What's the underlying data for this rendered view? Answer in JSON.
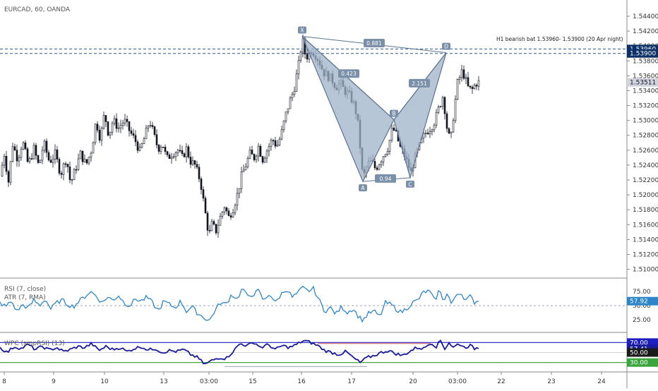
{
  "header": {
    "title": "EURCAD, 60, OANDA"
  },
  "colors": {
    "candle": "#131722",
    "pattern_fill": "#9fb3c8",
    "pattern_stroke": "#5b7391",
    "level_line": "#2b5797",
    "rsi_line": "#2e86c8",
    "wpc_line": "#1a1a9c",
    "wpc_upper": "#1f1fbf",
    "wpc_lower": "#2e9e2e",
    "wpc_red": "#e05a5a",
    "price_badge": "#0b2f66",
    "current_badge": "#d1d4dc"
  },
  "chart_data": [
    {
      "type": "candlestick",
      "title": "EURCAD, 60, OANDA",
      "y_ticks": [
        "1.54400",
        "1.54200",
        "1.54000",
        "1.53800",
        "1.53600",
        "1.53400",
        "1.53200",
        "1.53000",
        "1.52800",
        "1.52600",
        "1.52400",
        "1.52200",
        "1.52000",
        "1.51800",
        "1.51600",
        "1.51400",
        "1.51200",
        "1.51000"
      ],
      "ylim": [
        1.5092,
        1.5458
      ],
      "x_ticks": [
        "8",
        "9",
        "10",
        "13",
        "03:00",
        "15",
        "16",
        "17",
        "20",
        "03:00",
        "22",
        "23",
        "24"
      ],
      "close_path": [
        [
          0,
          1.5225
        ],
        [
          6,
          1.5255
        ],
        [
          12,
          1.5218
        ],
        [
          18,
          1.5268
        ],
        [
          25,
          1.5248
        ],
        [
          32,
          1.5272
        ],
        [
          40,
          1.524
        ],
        [
          48,
          1.5262
        ],
        [
          55,
          1.5238
        ],
        [
          62,
          1.527
        ],
        [
          70,
          1.5244
        ],
        [
          78,
          1.5255
        ],
        [
          86,
          1.5228
        ],
        [
          94,
          1.525
        ],
        [
          100,
          1.5215
        ],
        [
          108,
          1.5238
        ],
        [
          114,
          1.5255
        ],
        [
          122,
          1.524
        ],
        [
          130,
          1.5262
        ],
        [
          136,
          1.53
        ],
        [
          142,
          1.5275
        ],
        [
          148,
          1.531
        ],
        [
          154,
          1.528
        ],
        [
          160,
          1.53
        ],
        [
          168,
          1.529
        ],
        [
          176,
          1.53
        ],
        [
          184,
          1.5285
        ],
        [
          192,
          1.5272
        ],
        [
          198,
          1.5258
        ],
        [
          205,
          1.5278
        ],
        [
          212,
          1.53
        ],
        [
          218,
          1.528
        ],
        [
          224,
          1.5262
        ],
        [
          230,
          1.527
        ],
        [
          236,
          1.5248
        ],
        [
          244,
          1.5256
        ],
        [
          252,
          1.526
        ],
        [
          258,
          1.525
        ],
        [
          264,
          1.5262
        ],
        [
          270,
          1.5245
        ],
        [
          276,
          1.524
        ],
        [
          284,
          1.5218
        ],
        [
          290,
          1.518
        ],
        [
          296,
          1.5145
        ],
        [
          300,
          1.516
        ],
        [
          306,
          1.5152
        ],
        [
          312,
          1.517
        ],
        [
          318,
          1.5185
        ],
        [
          324,
          1.517
        ],
        [
          330,
          1.5182
        ],
        [
          336,
          1.52
        ],
        [
          342,
          1.5225
        ],
        [
          348,
          1.524
        ],
        [
          354,
          1.5255
        ],
        [
          360,
          1.525
        ],
        [
          366,
          1.5265
        ],
        [
          372,
          1.5248
        ],
        [
          378,
          1.526
        ],
        [
          386,
          1.5275
        ],
        [
          392,
          1.5265
        ],
        [
          398,
          1.528
        ],
        [
          404,
          1.5305
        ],
        [
          410,
          1.5325
        ],
        [
          416,
          1.534
        ],
        [
          420,
          1.536
        ],
        [
          424,
          1.538
        ],
        [
          428,
          1.541
        ],
        [
          432,
          1.539
        ],
        [
          436,
          1.5385
        ],
        [
          440,
          1.5395
        ],
        [
          446,
          1.539
        ],
        [
          452,
          1.538
        ],
        [
          458,
          1.5365
        ],
        [
          464,
          1.536
        ],
        [
          470,
          1.5355
        ],
        [
          476,
          1.5345
        ],
        [
          482,
          1.535
        ],
        [
          488,
          1.534
        ],
        [
          494,
          1.5335
        ],
        [
          500,
          1.5325
        ],
        [
          506,
          1.5305
        ],
        [
          510,
          1.5265
        ],
        [
          514,
          1.522
        ],
        [
          520,
          1.524
        ],
        [
          526,
          1.5245
        ],
        [
          532,
          1.5235
        ],
        [
          538,
          1.5245
        ],
        [
          544,
          1.5255
        ],
        [
          550,
          1.5265
        ],
        [
          556,
          1.529
        ],
        [
          562,
          1.528
        ],
        [
          566,
          1.5265
        ],
        [
          572,
          1.5255
        ],
        [
          578,
          1.524
        ],
        [
          582,
          1.523
        ],
        [
          586,
          1.5245
        ],
        [
          592,
          1.526
        ],
        [
          598,
          1.5275
        ],
        [
          604,
          1.5285
        ],
        [
          610,
          1.529
        ],
        [
          616,
          1.53
        ],
        [
          622,
          1.5318
        ],
        [
          628,
          1.5335
        ],
        [
          632,
          1.5295
        ],
        [
          638,
          1.527
        ],
        [
          642,
          1.5305
        ],
        [
          648,
          1.535
        ],
        [
          654,
          1.5365
        ],
        [
          658,
          1.536
        ],
        [
          662,
          1.5345
        ],
        [
          668,
          1.534
        ],
        [
          674,
          1.535
        ],
        [
          678,
          1.5351
        ]
      ],
      "pattern": {
        "points": [
          {
            "label": "X",
            "bar": 428,
            "price": 1.5413
          },
          {
            "label": "A",
            "bar": 514,
            "price": 1.5218
          },
          {
            "label": "B",
            "bar": 558,
            "price": 1.5301
          },
          {
            "label": "C",
            "bar": 581,
            "price": 1.5223
          },
          {
            "label": "D",
            "bar": 632,
            "price": 1.5391
          }
        ],
        "ratios": [
          {
            "text": "0.881",
            "bar": 530,
            "price": 1.5404
          },
          {
            "text": "0.423",
            "bar": 494,
            "price": 1.5363
          },
          {
            "text": "0.94",
            "bar": 546,
            "price": 1.5222
          },
          {
            "text": "2.151",
            "bar": 594,
            "price": 1.535
          }
        ]
      },
      "levels": [
        1.5396,
        1.539
      ],
      "annotation": "H1 bearish bat 1.53960- 1.53900 (20 Apr night)",
      "price_labels": [
        "1.53960",
        "1.53900"
      ],
      "current_price": "1.53511"
    },
    {
      "type": "line",
      "title": "RSI (7, close)",
      "subtitle": "ATR (7, RMA)",
      "y_ticks": [
        "75.00",
        "50.00",
        "25.00"
      ],
      "ylim": [
        6,
        94
      ],
      "reference_level": 50,
      "current_value": "57.92",
      "series": [
        {
          "values_path": [
            [
              0,
              55
            ],
            [
              8,
              48
            ],
            [
              16,
              58
            ],
            [
              24,
              40
            ],
            [
              32,
              52
            ],
            [
              40,
              45
            ],
            [
              48,
              60
            ],
            [
              56,
              50
            ],
            [
              64,
              62
            ],
            [
              72,
              44
            ],
            [
              80,
              55
            ],
            [
              88,
              60
            ],
            [
              96,
              52
            ],
            [
              104,
              48
            ],
            [
              112,
              58
            ],
            [
              120,
              66
            ],
            [
              128,
              75
            ],
            [
              136,
              68
            ],
            [
              144,
              55
            ],
            [
              152,
              65
            ],
            [
              160,
              60
            ],
            [
              168,
              68
            ],
            [
              176,
              55
            ],
            [
              184,
              50
            ],
            [
              192,
              62
            ],
            [
              200,
              58
            ],
            [
              208,
              65
            ],
            [
              216,
              55
            ],
            [
              224,
              40
            ],
            [
              232,
              58
            ],
            [
              240,
              52
            ],
            [
              248,
              46
            ],
            [
              256,
              58
            ],
            [
              264,
              40
            ],
            [
              272,
              48
            ],
            [
              280,
              36
            ],
            [
              288,
              30
            ],
            [
              296,
              22
            ],
            [
              304,
              40
            ],
            [
              312,
              55
            ],
            [
              320,
              52
            ],
            [
              328,
              70
            ],
            [
              336,
              62
            ],
            [
              344,
              82
            ],
            [
              350,
              65
            ],
            [
              358,
              70
            ],
            [
              366,
              76
            ],
            [
              374,
              58
            ],
            [
              382,
              72
            ],
            [
              390,
              55
            ],
            [
              398,
              70
            ],
            [
              406,
              80
            ],
            [
              414,
              65
            ],
            [
              422,
              72
            ],
            [
              428,
              82
            ],
            [
              436,
              76
            ],
            [
              444,
              80
            ],
            [
              452,
              60
            ],
            [
              460,
              40
            ],
            [
              468,
              46
            ],
            [
              476,
              35
            ],
            [
              484,
              48
            ],
            [
              492,
              38
            ],
            [
              500,
              45
            ],
            [
              508,
              30
            ],
            [
              514,
              24
            ],
            [
              522,
              36
            ],
            [
              530,
              40
            ],
            [
              538,
              30
            ],
            [
              546,
              55
            ],
            [
              554,
              52
            ],
            [
              560,
              45
            ],
            [
              568,
              38
            ],
            [
              576,
              45
            ],
            [
              584,
              55
            ],
            [
              592,
              60
            ],
            [
              600,
              74
            ],
            [
              608,
              76
            ],
            [
              616,
              58
            ],
            [
              622,
              78
            ],
            [
              628,
              60
            ],
            [
              634,
              72
            ],
            [
              640,
              50
            ],
            [
              646,
              70
            ],
            [
              652,
              74
            ],
            [
              660,
              60
            ],
            [
              666,
              66
            ],
            [
              672,
              56
            ],
            [
              678,
              60
            ]
          ]
        }
      ]
    },
    {
      "type": "line",
      "title": "WPC (smpRSI) (13)",
      "y_ticks": [
        "70.00",
        "57.41",
        "50.00",
        "30.00"
      ],
      "ylim": [
        14,
        86
      ],
      "upper_level": 70,
      "lower_level": 30,
      "series": [
        {
          "values_path": [
            [
              0,
              60
            ],
            [
              10,
              50
            ],
            [
              20,
              62
            ],
            [
              30,
              58
            ],
            [
              40,
              66
            ],
            [
              50,
              56
            ],
            [
              60,
              62
            ],
            [
              70,
              55
            ],
            [
              80,
              60
            ],
            [
              90,
              52
            ],
            [
              100,
              56
            ],
            [
              110,
              62
            ],
            [
              120,
              60
            ],
            [
              130,
              68
            ],
            [
              140,
              54
            ],
            [
              150,
              62
            ],
            [
              160,
              56
            ],
            [
              170,
              60
            ],
            [
              180,
              52
            ],
            [
              190,
              58
            ],
            [
              200,
              62
            ],
            [
              210,
              55
            ],
            [
              220,
              58
            ],
            [
              230,
              50
            ],
            [
              240,
              54
            ],
            [
              250,
              52
            ],
            [
              260,
              56
            ],
            [
              270,
              46
            ],
            [
              280,
              40
            ],
            [
              290,
              26
            ],
            [
              300,
              34
            ],
            [
              310,
              40
            ],
            [
              320,
              38
            ],
            [
              330,
              52
            ],
            [
              340,
              68
            ],
            [
              350,
              64
            ],
            [
              360,
              70
            ],
            [
              370,
              60
            ],
            [
              380,
              66
            ],
            [
              390,
              56
            ],
            [
              400,
              64
            ],
            [
              410,
              60
            ],
            [
              420,
              66
            ],
            [
              430,
              74
            ],
            [
              440,
              70
            ],
            [
              450,
              64
            ],
            [
              460,
              54
            ],
            [
              470,
              50
            ],
            [
              480,
              46
            ],
            [
              490,
              52
            ],
            [
              500,
              40
            ],
            [
              510,
              30
            ],
            [
              520,
              40
            ],
            [
              530,
              44
            ],
            [
              540,
              50
            ],
            [
              550,
              54
            ],
            [
              560,
              48
            ],
            [
              570,
              44
            ],
            [
              580,
              52
            ],
            [
              590,
              60
            ],
            [
              600,
              58
            ],
            [
              610,
              70
            ],
            [
              618,
              62
            ],
            [
              624,
              74
            ],
            [
              630,
              58
            ],
            [
              636,
              70
            ],
            [
              642,
              60
            ],
            [
              650,
              68
            ],
            [
              658,
              60
            ],
            [
              666,
              64
            ],
            [
              672,
              58
            ],
            [
              678,
              60
            ]
          ]
        }
      ],
      "current_value": "57.41"
    }
  ]
}
